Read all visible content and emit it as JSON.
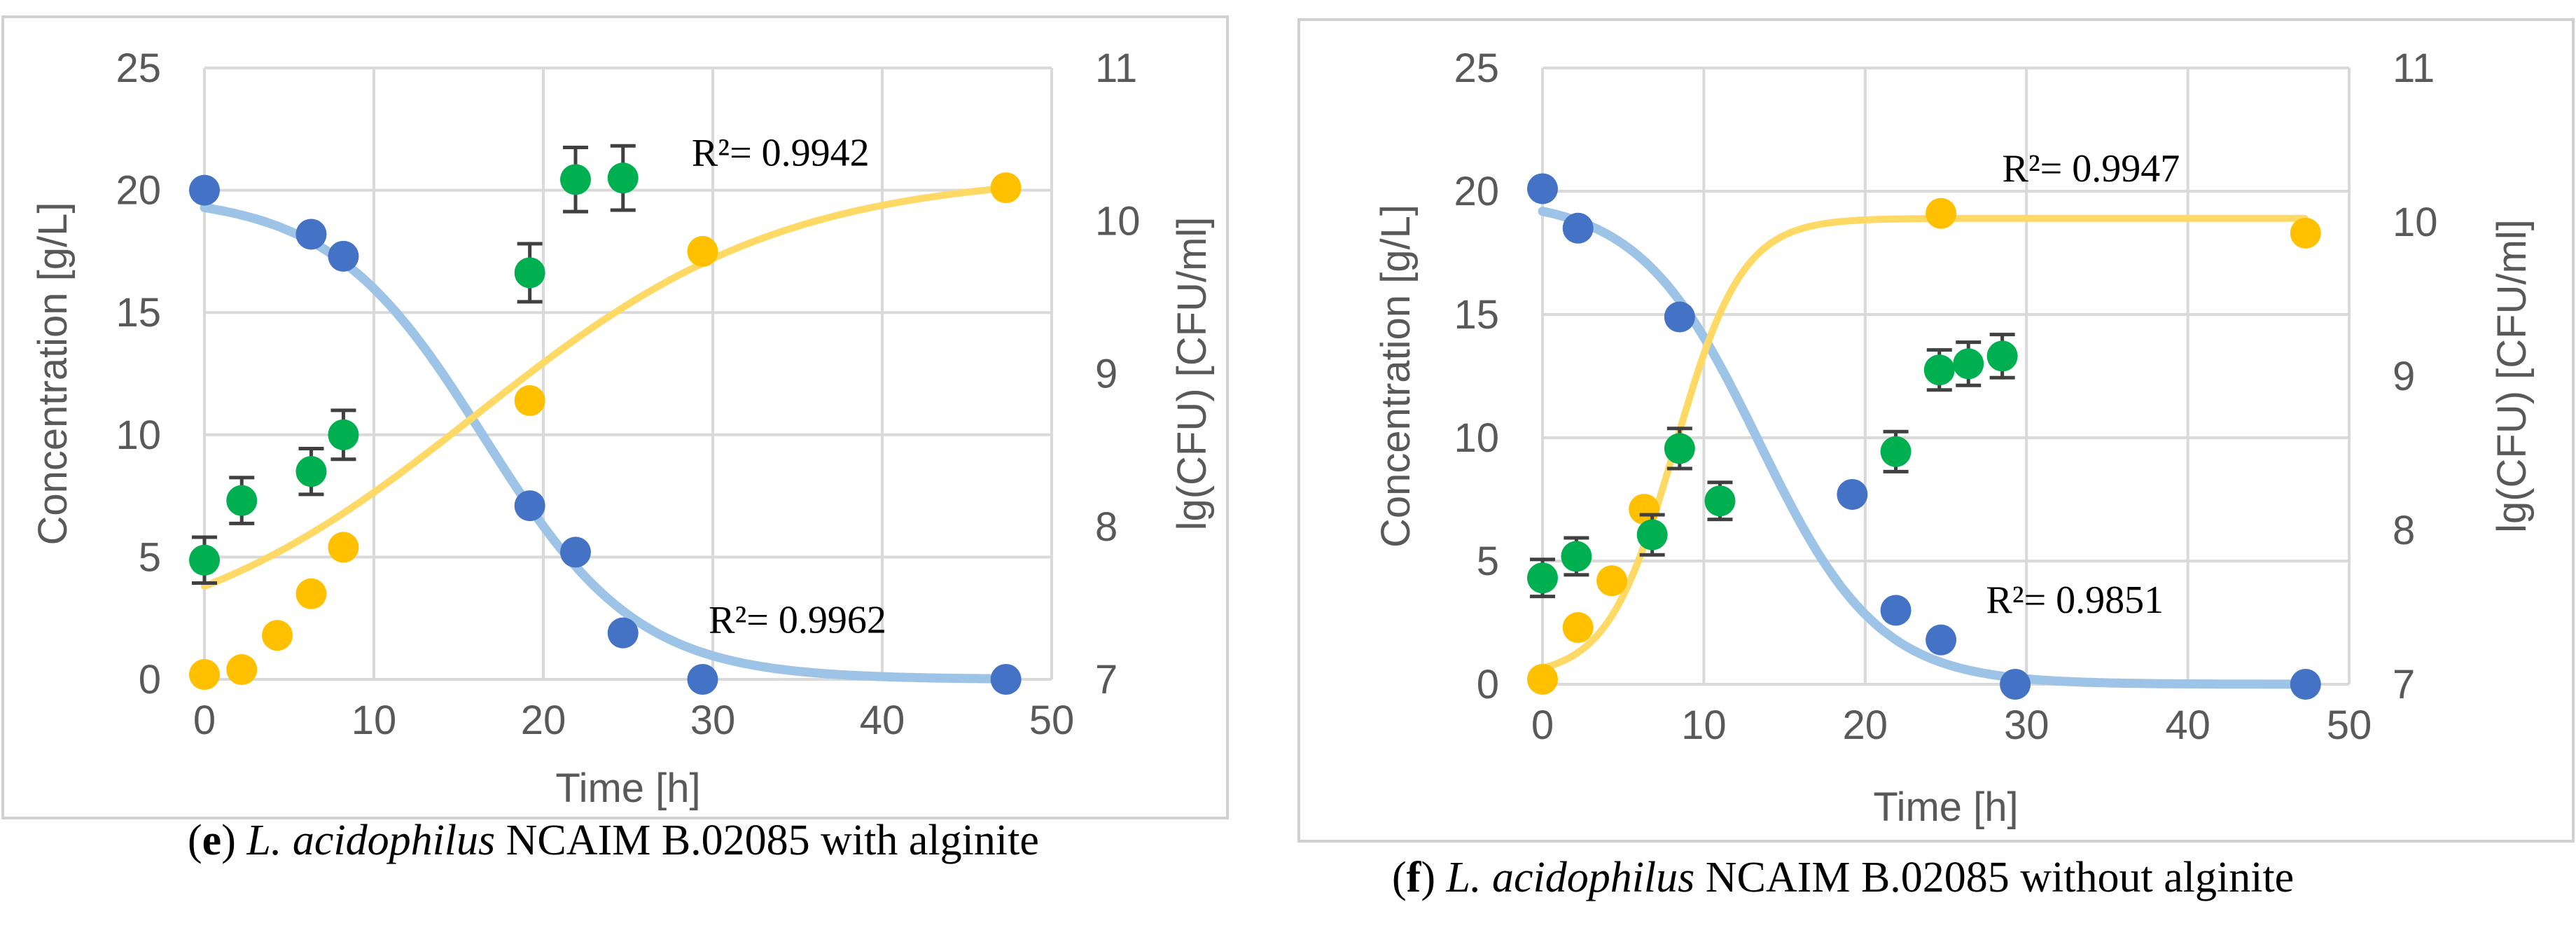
{
  "charts": [
    {
      "id": "e",
      "caption": {
        "letter": "e",
        "species": "L. acidophilus",
        "rest": " NCAIM B.02085 with alginite"
      },
      "chart_data": {
        "type": "scatter",
        "xlabel": "Time [h]",
        "ylabel_left": "Concentration [g/L]",
        "ylabel_right": "lg(CFU) [CFU/ml]",
        "xlim": [
          0,
          50
        ],
        "ylim_left": [
          0,
          25
        ],
        "ylim_right": [
          7,
          11
        ],
        "xticks": [
          "0",
          "10",
          "20",
          "30",
          "40",
          "50"
        ],
        "yticks_left": [
          "0",
          "5",
          "10",
          "15",
          "20",
          "25"
        ],
        "yticks_right": [
          "7",
          "8",
          "9",
          "10",
          "11"
        ],
        "grid": true,
        "annotations": [
          {
            "text": "R²= 0.9942",
            "x": 34,
            "y": 21
          },
          {
            "text": "R²= 0.9962",
            "x": 35,
            "y": 1.9
          }
        ],
        "series": [
          {
            "axis": "left",
            "color": "#4472c4",
            "kind": "points",
            "x": [
              0,
              6.3,
              8.2,
              19.2,
              21.9,
              24.7,
              29.4,
              47.3
            ],
            "y": [
              20.0,
              18.2,
              17.3,
              7.1,
              5.2,
              1.9,
              0.0,
              0.0
            ]
          },
          {
            "axis": "left",
            "color": "#ffc000",
            "kind": "points",
            "x": [
              0,
              2.2,
              4.3,
              6.3,
              8.2,
              19.2,
              29.4,
              47.3
            ],
            "y": [
              0.2,
              0.4,
              1.8,
              3.5,
              5.4,
              11.4,
              17.5,
              20.1
            ]
          },
          {
            "axis": "right",
            "color": "#00b050",
            "kind": "points_error",
            "x": [
              0,
              2.2,
              6.3,
              8.2,
              19.2,
              21.9,
              24.7
            ],
            "y": [
              7.78,
              8.17,
              8.36,
              8.6,
              9.66,
              10.27,
              10.28
            ],
            "err": [
              0.15,
              0.15,
              0.15,
              0.16,
              0.19,
              0.21,
              0.21
            ]
          },
          {
            "axis": "left",
            "color": "#9dc3e6",
            "kind": "fit",
            "model": "decline",
            "a": 19.8,
            "k": 0.22,
            "c": 16.5
          },
          {
            "axis": "left",
            "color": "#ffd966",
            "kind": "fit",
            "model": "growth",
            "a": 20.7,
            "k": 0.11,
            "c": 16.0,
            "b": 0.9
          }
        ]
      }
    },
    {
      "id": "f",
      "caption": {
        "letter": "f",
        "species": "L. acidophilus",
        "rest": " NCAIM B.02085 without alginite"
      },
      "chart_data": {
        "type": "scatter",
        "xlabel": "Time [h]",
        "ylabel_left": "Concentration  [g/L]",
        "ylabel_right": "lg(CFU) [CFU/ml]",
        "xlim": [
          0,
          50
        ],
        "ylim_left": [
          0,
          25
        ],
        "ylim_right": [
          7,
          11
        ],
        "xticks": [
          "0",
          "10",
          "20",
          "30",
          "40",
          "50"
        ],
        "yticks_left": [
          "0",
          "5",
          "10",
          "15",
          "20",
          "25"
        ],
        "yticks_right": [
          "7",
          "8",
          "9",
          "10",
          "11"
        ],
        "grid": true,
        "annotations": [
          {
            "text": "R²= 0.9947",
            "x": 34,
            "y": 20.4
          },
          {
            "text": "R²= 0.9851",
            "x": 33,
            "y": 2.9
          }
        ],
        "series": [
          {
            "axis": "left",
            "color": "#4472c4",
            "kind": "points",
            "x": [
              0,
              2.2,
              8.5,
              19.2,
              21.9,
              24.7,
              29.3,
              47.3
            ],
            "y": [
              20.1,
              18.5,
              14.9,
              7.7,
              3.0,
              1.8,
              0.0,
              0.0
            ]
          },
          {
            "axis": "left",
            "color": "#ffc000",
            "kind": "points",
            "x": [
              0,
              2.2,
              4.3,
              6.3,
              24.7,
              47.3
            ],
            "y": [
              0.2,
              2.3,
              4.2,
              7.1,
              19.1,
              18.3
            ]
          },
          {
            "axis": "right",
            "color": "#00b050",
            "kind": "points_error",
            "x": [
              0,
              2.1,
              6.8,
              8.5,
              11.0,
              21.9,
              24.6,
              26.4,
              28.5
            ],
            "y": [
              7.69,
              7.83,
              7.97,
              8.53,
              8.19,
              8.51,
              9.04,
              9.08,
              9.13
            ],
            "err": [
              0.12,
              0.12,
              0.13,
              0.13,
              0.12,
              0.13,
              0.13,
              0.14,
              0.14
            ]
          },
          {
            "axis": "left",
            "color": "#9dc3e6",
            "kind": "fit",
            "model": "decline",
            "a": 19.7,
            "k": 0.27,
            "c": 13.4
          },
          {
            "axis": "left",
            "color": "#ffd966",
            "kind": "fit",
            "model": "growth",
            "a": 18.9,
            "k": 0.48,
            "c": 8.2,
            "b": 0.3
          }
        ]
      }
    }
  ]
}
